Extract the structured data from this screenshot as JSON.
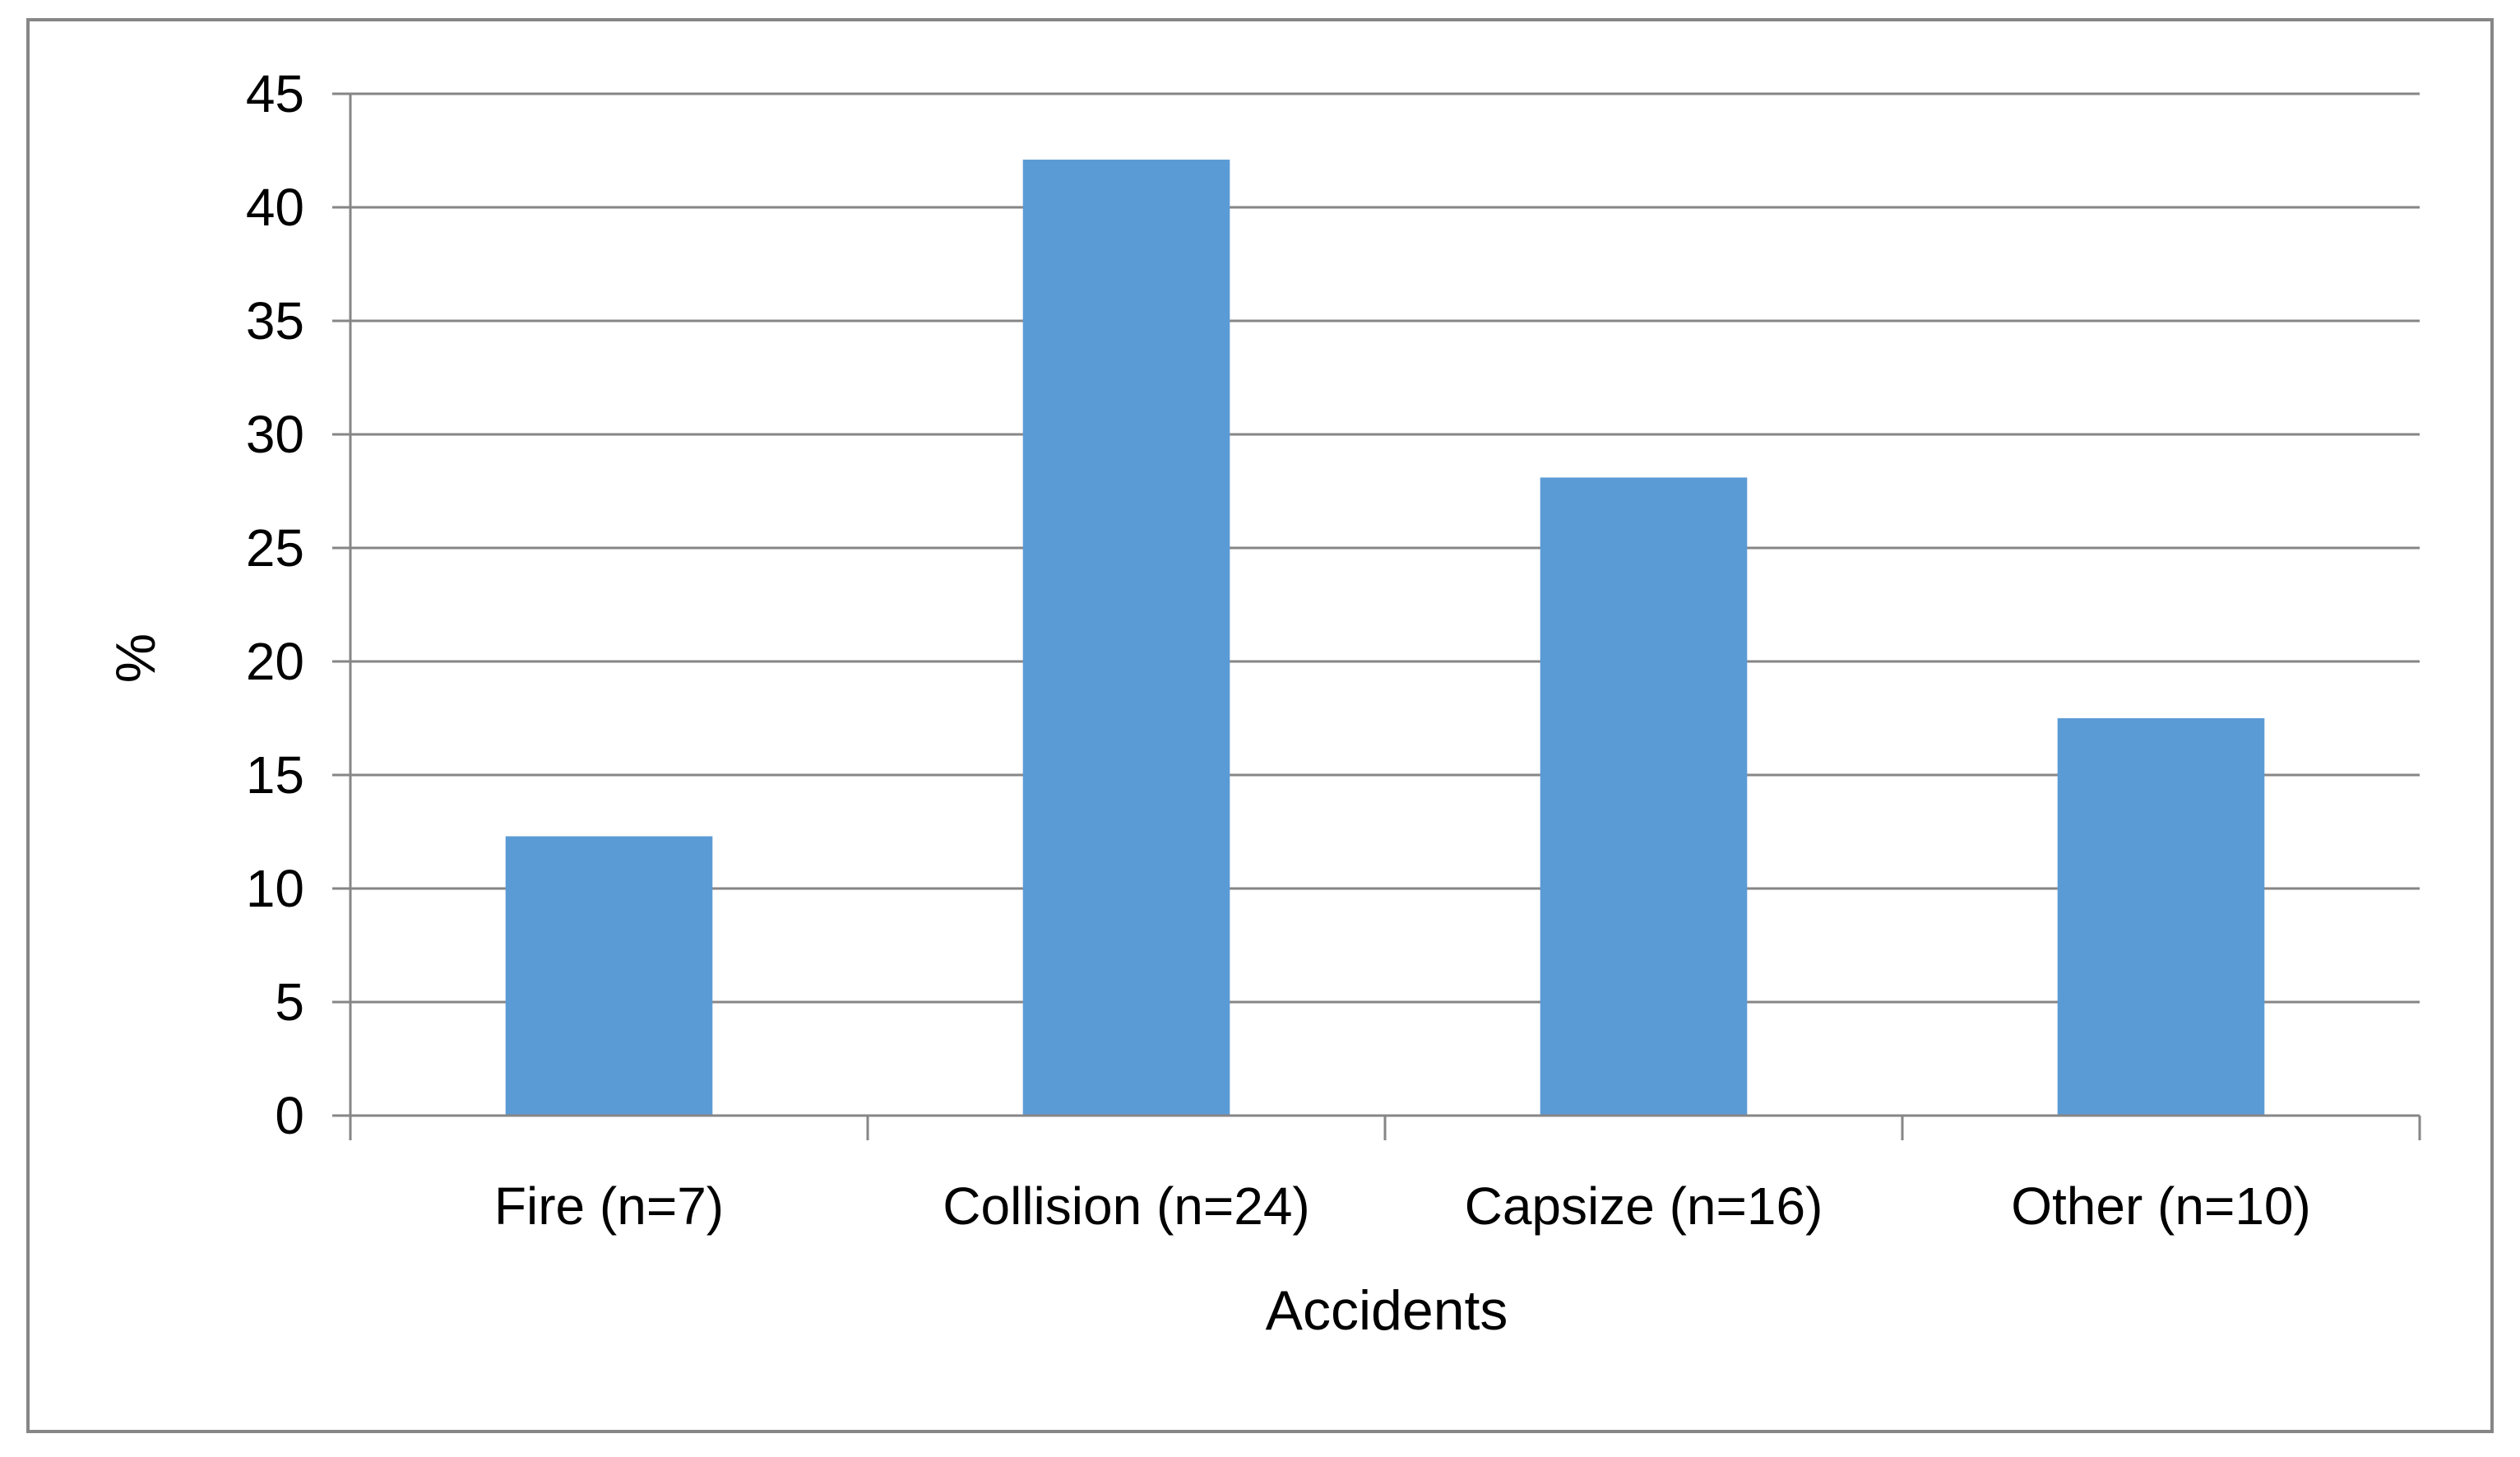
{
  "chart_data": {
    "type": "bar",
    "title": "",
    "xlabel": "Accidents",
    "ylabel": "%",
    "categories": [
      "Fire (n=7)",
      "Collision (n=24)",
      "Capsize (n=16)",
      "Other (n=10)"
    ],
    "series": [
      {
        "values": [
          12.3,
          42.1,
          28.1,
          17.5
        ]
      }
    ],
    "ylim": [
      0,
      45
    ],
    "yticks": [
      "0",
      "5",
      "10",
      "15",
      "20",
      "25",
      "30",
      "35",
      "40",
      "45"
    ],
    "grid": true,
    "legend": "none",
    "colors": {
      "bar": "#5b9bd5",
      "grid": "#868686",
      "frame": "#868686"
    }
  }
}
